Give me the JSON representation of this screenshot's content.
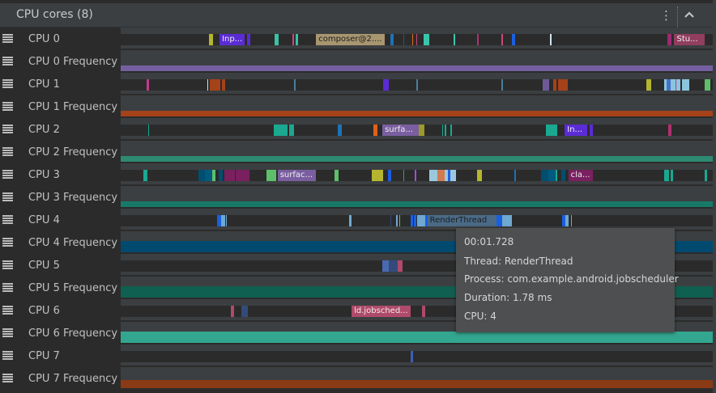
{
  "header": {
    "title": "CPU cores (8)",
    "more_icon": "kebab-icon",
    "collapse_icon": "chevron-up-icon"
  },
  "rows": [
    {
      "type": "cpu",
      "label": "CPU 0",
      "slices": [
        {
          "s": 14.9,
          "e": 15.6,
          "c": "#b5b52f"
        },
        {
          "s": 16.7,
          "e": 20.9,
          "c": "#5b2bd6",
          "t": "Inp..."
        },
        {
          "s": 21.3,
          "e": 21.9,
          "c": "#5b2bd6"
        },
        {
          "s": 26.0,
          "e": 26.7,
          "c": "#3bbfa5"
        },
        {
          "s": 29.0,
          "e": 29.3,
          "c": "#c74a7a"
        },
        {
          "s": 29.5,
          "e": 30.0,
          "c": "#3bbfa5"
        },
        {
          "s": 33.0,
          "e": 44.6,
          "c": "#a89670",
          "t": "composer@2....",
          "dark": true
        },
        {
          "s": 45.6,
          "e": 46.1,
          "c": "#1a73b8"
        },
        {
          "s": 47.7,
          "e": 47.9,
          "c": "#0f6a5a"
        },
        {
          "s": 49.2,
          "e": 49.4,
          "c": "#e06a1a"
        },
        {
          "s": 49.9,
          "e": 50.1,
          "c": "#c74a7a"
        },
        {
          "s": 51.2,
          "e": 52.1,
          "c": "#3bc4ad"
        },
        {
          "s": 56.2,
          "e": 56.5,
          "c": "#3bc4ad"
        },
        {
          "s": 60.2,
          "e": 60.5,
          "c": "#b0306f"
        },
        {
          "s": 64.3,
          "e": 64.6,
          "c": "#c74a7a"
        },
        {
          "s": 66.1,
          "e": 66.6,
          "c": "#1a5fe0"
        },
        {
          "s": 72.5,
          "e": 72.8,
          "c": "#cde4f0"
        },
        {
          "s": 92.3,
          "e": 93.0,
          "c": "#9c2a70"
        },
        {
          "s": 93.5,
          "e": 98.6,
          "c": "#923e5e",
          "t": "Stu..."
        }
      ]
    },
    {
      "type": "freq",
      "label": "CPU 0 Frequency",
      "color": "#7460a0",
      "level": 0.53
    },
    {
      "type": "cpu",
      "label": "CPU 1",
      "slices": [
        {
          "s": 4.4,
          "e": 4.8,
          "c": "#c23a8c"
        },
        {
          "s": 14.6,
          "e": 14.8,
          "c": "#cde4f0"
        },
        {
          "s": 15.0,
          "e": 16.8,
          "c": "#a5421a"
        },
        {
          "s": 17.1,
          "e": 17.6,
          "c": "#a5421a"
        },
        {
          "s": 29.3,
          "e": 29.5,
          "c": "#467fa0"
        },
        {
          "s": 44.3,
          "e": 45.3,
          "c": "#5b2bd6"
        },
        {
          "s": 49.9,
          "e": 50.2,
          "c": "#467fa0"
        },
        {
          "s": 64.3,
          "e": 64.6,
          "c": "#467fa0"
        },
        {
          "s": 71.3,
          "e": 72.4,
          "c": "#6e5a9a"
        },
        {
          "s": 73.1,
          "e": 73.6,
          "c": "#a5421a"
        },
        {
          "s": 73.9,
          "e": 75.5,
          "c": "#a5421a"
        },
        {
          "s": 88.8,
          "e": 89.6,
          "c": "#b5b52f"
        },
        {
          "s": 91.8,
          "e": 92.2,
          "c": "#8cc4de"
        },
        {
          "s": 92.2,
          "e": 92.9,
          "c": "#4472c4"
        },
        {
          "s": 92.9,
          "e": 93.7,
          "c": "#8cc4de"
        },
        {
          "s": 93.7,
          "e": 93.9,
          "c": "#c23a8c"
        },
        {
          "s": 93.9,
          "e": 94.5,
          "c": "#8cc4de"
        },
        {
          "s": 94.8,
          "e": 96.0,
          "c": "#8cc4de"
        },
        {
          "s": 98.6,
          "e": 99.6,
          "c": "#5dbf6a"
        }
      ]
    },
    {
      "type": "freq",
      "label": "CPU 1 Frequency",
      "color": "#a5421a",
      "level": 0.53
    },
    {
      "type": "cpu",
      "label": "CPU 2",
      "slices": [
        {
          "s": 4.7,
          "e": 4.8,
          "c": "#1aa890"
        },
        {
          "s": 25.9,
          "e": 28.2,
          "c": "#1aa890"
        },
        {
          "s": 28.5,
          "e": 29.3,
          "c": "#1aa890"
        },
        {
          "s": 36.7,
          "e": 37.3,
          "c": "#1a73b8"
        },
        {
          "s": 42.7,
          "e": 43.4,
          "c": "#e0601a"
        },
        {
          "s": 44.2,
          "e": 50.3,
          "c": "#7a5ea0",
          "t": "surfa..."
        },
        {
          "s": 50.3,
          "e": 51.3,
          "c": "#9a9a2a"
        },
        {
          "s": 54.3,
          "e": 54.4,
          "c": "#1aa890"
        },
        {
          "s": 54.7,
          "e": 55.0,
          "c": "#1aa890"
        },
        {
          "s": 55.7,
          "e": 56.0,
          "c": "#1aa890"
        },
        {
          "s": 71.8,
          "e": 73.7,
          "c": "#1aa890"
        },
        {
          "s": 75.0,
          "e": 78.8,
          "c": "#5b2bd6",
          "t": "In..."
        },
        {
          "s": 79.2,
          "e": 79.8,
          "c": "#5b2bd6"
        },
        {
          "s": 92.5,
          "e": 93.0,
          "c": "#b0306f"
        }
      ]
    },
    {
      "type": "freq",
      "label": "CPU 2 Frequency",
      "color": "#2e8a72",
      "level": 0.53
    },
    {
      "type": "cpu",
      "label": "CPU 3",
      "slices": [
        {
          "s": 3.8,
          "e": 4.5,
          "c": "#1aa890"
        },
        {
          "s": 13.1,
          "e": 14.2,
          "c": "#004e70"
        },
        {
          "s": 14.2,
          "e": 15.5,
          "c": "#005a80"
        },
        {
          "s": 15.5,
          "e": 16.0,
          "c": "#5dbf6a"
        },
        {
          "s": 16.6,
          "e": 17.2,
          "c": "#004e70"
        },
        {
          "s": 17.5,
          "e": 19.3,
          "c": "#7a2060"
        },
        {
          "s": 19.4,
          "e": 21.8,
          "c": "#7a2060"
        },
        {
          "s": 24.6,
          "e": 26.3,
          "c": "#5dbf6a"
        },
        {
          "s": 26.5,
          "e": 33.0,
          "c": "#7a5ea0",
          "t": "surfac..."
        },
        {
          "s": 36.1,
          "e": 36.8,
          "c": "#5dbf6a"
        },
        {
          "s": 42.4,
          "e": 44.3,
          "c": "#b5b52f"
        },
        {
          "s": 45.1,
          "e": 45.7,
          "c": "#1a5fe0"
        },
        {
          "s": 47.7,
          "e": 47.9,
          "c": "#1aa890"
        },
        {
          "s": 49.7,
          "e": 49.9,
          "c": "#9a4fe0"
        },
        {
          "s": 52.1,
          "e": 53.5,
          "c": "#9cc8de"
        },
        {
          "s": 53.5,
          "e": 54.7,
          "c": "#d07a50"
        },
        {
          "s": 54.7,
          "e": 55.3,
          "c": "#9cc8de"
        },
        {
          "s": 55.3,
          "e": 55.7,
          "c": "#1a5fe0"
        },
        {
          "s": 55.7,
          "e": 56.6,
          "c": "#9cc8de"
        },
        {
          "s": 60.2,
          "e": 61.0,
          "c": "#b5b52f"
        },
        {
          "s": 66.5,
          "e": 66.8,
          "c": "#1a73b8"
        },
        {
          "s": 71.0,
          "e": 72.2,
          "c": "#004e70"
        },
        {
          "s": 72.2,
          "e": 73.5,
          "c": "#005a80"
        },
        {
          "s": 73.5,
          "e": 73.7,
          "c": "#1aa890"
        },
        {
          "s": 74.4,
          "e": 75.1,
          "c": "#004e70"
        },
        {
          "s": 75.6,
          "e": 79.8,
          "c": "#7a2060",
          "t": "cla..."
        },
        {
          "s": 91.8,
          "e": 92.6,
          "c": "#1aa890"
        },
        {
          "s": 92.9,
          "e": 93.3,
          "c": "#1aa890"
        },
        {
          "s": 98.7,
          "e": 99.0,
          "c": "#1aa890"
        }
      ]
    },
    {
      "type": "freq",
      "label": "CPU 3 Frequency",
      "color": "#177a68",
      "level": 0.53
    },
    {
      "type": "cpu",
      "label": "CPU 4",
      "slices": [
        {
          "s": 16.3,
          "e": 17.0,
          "c": "#1a5fe0"
        },
        {
          "s": 17.0,
          "e": 17.6,
          "c": "#6fa8d0"
        },
        {
          "s": 17.8,
          "e": 17.9,
          "c": "#6fa8d0"
        },
        {
          "s": 38.6,
          "e": 39.0,
          "c": "#6fa8d0"
        },
        {
          "s": 45.6,
          "e": 45.7,
          "c": "#334a7a"
        },
        {
          "s": 46.5,
          "e": 46.8,
          "c": "#6fa8d0"
        },
        {
          "s": 47.1,
          "e": 47.2,
          "c": "#5dbf6a"
        },
        {
          "s": 49.0,
          "e": 49.4,
          "c": "#1a5fe0"
        },
        {
          "s": 49.5,
          "e": 49.9,
          "c": "#1a5fe0"
        },
        {
          "s": 50.1,
          "e": 51.4,
          "c": "#6fa8d0"
        },
        {
          "s": 51.4,
          "e": 51.8,
          "c": "#1a5fe0"
        },
        {
          "s": 51.8,
          "e": 63.5,
          "c": "#4a6a86",
          "t": "RenderThread",
          "dark": true
        },
        {
          "s": 63.5,
          "e": 64.4,
          "c": "#1a5fe0"
        },
        {
          "s": 64.4,
          "e": 66.1,
          "c": "#6fa8d0"
        },
        {
          "s": 74.6,
          "e": 75.1,
          "c": "#1a5fe0"
        },
        {
          "s": 75.1,
          "e": 75.6,
          "c": "#6fa8d0"
        },
        {
          "s": 76.1,
          "e": 76.2,
          "c": "#6fa8d0"
        }
      ]
    },
    {
      "type": "freq",
      "label": "CPU 4 Frequency",
      "color": "#004a70",
      "level": 1.0
    },
    {
      "type": "cpu",
      "label": "CPU 5",
      "slices": [
        {
          "s": 44.2,
          "e": 45.3,
          "c": "#4a6ab0"
        },
        {
          "s": 45.3,
          "e": 46.8,
          "c": "#334a7a"
        },
        {
          "s": 46.8,
          "e": 47.6,
          "c": "#b04a6a"
        }
      ]
    },
    {
      "type": "freq",
      "label": "CPU 5 Frequency",
      "color": "#0f6050",
      "level": 1.0
    },
    {
      "type": "cpu",
      "label": "CPU 6",
      "slices": [
        {
          "s": 18.6,
          "e": 19.2,
          "c": "#b04a6a"
        },
        {
          "s": 20.4,
          "e": 21.5,
          "c": "#334a7a"
        },
        {
          "s": 39.0,
          "e": 49.0,
          "c": "#b04a6a",
          "t": "ld.jobsched..."
        },
        {
          "s": 50.9,
          "e": 51.4,
          "c": "#b04a6a"
        }
      ]
    },
    {
      "type": "freq",
      "label": "CPU 6 Frequency",
      "color": "#33a690",
      "level": 1.0
    },
    {
      "type": "cpu",
      "label": "CPU 7",
      "slices": [
        {
          "s": 49.0,
          "e": 49.4,
          "c": "#3d5fb0"
        }
      ]
    },
    {
      "type": "freq",
      "label": "CPU 7 Frequency",
      "color": "#8a3a14",
      "level": 0.73
    }
  ],
  "tooltip": {
    "time": "00:01.728",
    "thread": "Thread: RenderThread",
    "process": "Process: com.example.android.jobscheduler",
    "duration": "Duration: 1.78 ms",
    "cpu": "CPU: 4"
  }
}
